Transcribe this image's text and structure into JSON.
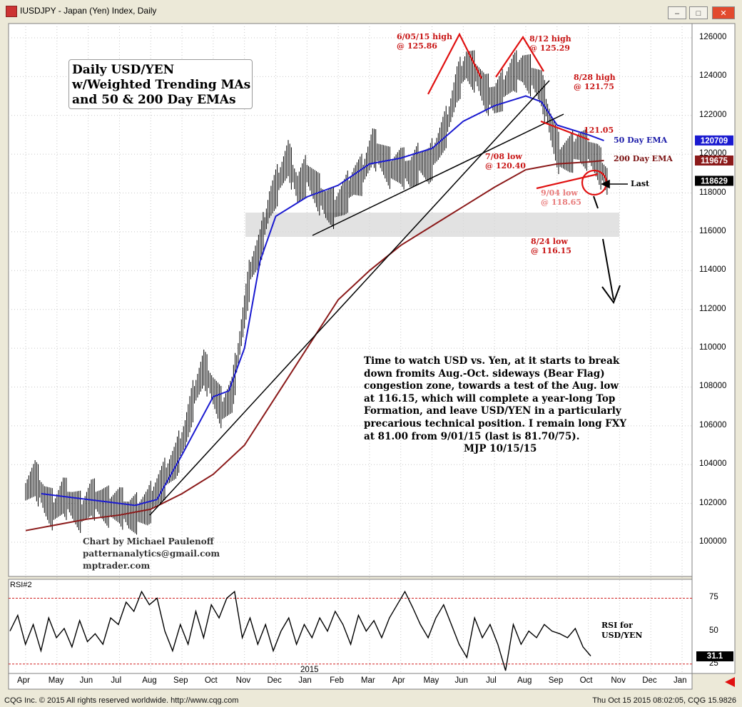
{
  "window": {
    "title": "IUSDJPY - Japan (Yen) Index, Daily",
    "buttons": [
      "minimize",
      "maximize",
      "close"
    ]
  },
  "chart_data": [
    {
      "type": "line",
      "panel": "price",
      "title": "Daily USD/YEN\nw/Weighted Trending MAs\nand 50 & 200 Day EMAs",
      "x_axis_months": [
        "Apr",
        "May",
        "Jun",
        "Jul",
        "Aug",
        "Sep",
        "Oct",
        "Nov",
        "Dec",
        "Jan",
        "Feb",
        "Mar",
        "Apr",
        "May",
        "Jun",
        "Jul",
        "Aug",
        "Sep",
        "Oct",
        "Nov",
        "Dec",
        "Jan"
      ],
      "x_axis_year": "2015",
      "ylim": [
        98500,
        127000
      ],
      "y_ticks": [
        "126000",
        "124000",
        "122000",
        "120000",
        "118000",
        "116000",
        "114000",
        "112000",
        "110000",
        "108000",
        "106000",
        "104000",
        "102000",
        "100000"
      ],
      "series": [
        {
          "name": "50 Day EMA",
          "color": "#1a1ad0",
          "points": [
            [
              0.5,
              102500
            ],
            [
              1.5,
              102300
            ],
            [
              2.5,
              102100
            ],
            [
              3.5,
              101900
            ],
            [
              4.2,
              102200
            ],
            [
              5,
              104500
            ],
            [
              6,
              107500
            ],
            [
              6.5,
              107800
            ],
            [
              7,
              110000
            ],
            [
              7.5,
              114500
            ],
            [
              8,
              116800
            ],
            [
              9,
              117800
            ],
            [
              10,
              118400
            ],
            [
              11,
              119500
            ],
            [
              12,
              119800
            ],
            [
              13,
              120300
            ],
            [
              14,
              121700
            ],
            [
              15,
              122500
            ],
            [
              16,
              123000
            ],
            [
              16.5,
              122700
            ],
            [
              17,
              121500
            ],
            [
              18,
              121000
            ],
            [
              18.5,
              120700
            ]
          ]
        },
        {
          "name": "200 Day EMA",
          "color": "#8b1a1a",
          "points": [
            [
              0,
              100600
            ],
            [
              1,
              100900
            ],
            [
              2,
              101200
            ],
            [
              3,
              101400
            ],
            [
              4,
              101700
            ],
            [
              5,
              102500
            ],
            [
              6,
              103500
            ],
            [
              7,
              105000
            ],
            [
              8,
              107500
            ],
            [
              9,
              110000
            ],
            [
              10,
              112500
            ],
            [
              11,
              114000
            ],
            [
              12,
              115300
            ],
            [
              13,
              116300
            ],
            [
              14,
              117300
            ],
            [
              15,
              118300
            ],
            [
              16,
              119200
            ],
            [
              17,
              119500
            ],
            [
              18,
              119600
            ],
            [
              18.5,
              119675
            ]
          ]
        }
      ],
      "price_range_points": [
        [
          0.0,
          102.6
        ],
        [
          0.3,
          103.3
        ],
        [
          0.6,
          102.2
        ],
        [
          0.9,
          101.6
        ],
        [
          1.2,
          102.4
        ],
        [
          1.5,
          101.9
        ],
        [
          1.8,
          101.5
        ],
        [
          2.1,
          102.3
        ],
        [
          2.4,
          102.0
        ],
        [
          2.7,
          101.8
        ],
        [
          3.0,
          101.9
        ],
        [
          3.3,
          101.4
        ],
        [
          3.6,
          101.5
        ],
        [
          3.9,
          101.8
        ],
        [
          4.2,
          102.6
        ],
        [
          4.5,
          103.4
        ],
        [
          4.8,
          104.2
        ],
        [
          5.1,
          105.6
        ],
        [
          5.4,
          107.6
        ],
        [
          5.7,
          109.0
        ],
        [
          6.0,
          107.8
        ],
        [
          6.3,
          106.8
        ],
        [
          6.6,
          107.6
        ],
        [
          6.9,
          110.8
        ],
        [
          7.2,
          114.0
        ],
        [
          7.5,
          115.2
        ],
        [
          7.8,
          117.4
        ],
        [
          8.1,
          118.6
        ],
        [
          8.4,
          119.8
        ],
        [
          8.7,
          118.2
        ],
        [
          9.0,
          119.0
        ],
        [
          9.3,
          118.2
        ],
        [
          9.6,
          117.4
        ],
        [
          9.9,
          117.2
        ],
        [
          10.2,
          117.8
        ],
        [
          10.5,
          118.6
        ],
        [
          10.8,
          119.0
        ],
        [
          11.1,
          120.4
        ],
        [
          11.4,
          119.8
        ],
        [
          11.7,
          119.2
        ],
        [
          12.0,
          119.4
        ],
        [
          12.3,
          119.0
        ],
        [
          12.6,
          119.6
        ],
        [
          12.9,
          119.4
        ],
        [
          13.2,
          120.4
        ],
        [
          13.5,
          121.6
        ],
        [
          13.8,
          123.6
        ],
        [
          14.1,
          124.6
        ],
        [
          14.4,
          124.2
        ],
        [
          14.7,
          123.2
        ],
        [
          15.0,
          122.8
        ],
        [
          15.3,
          123.4
        ],
        [
          15.6,
          124.2
        ],
        [
          15.9,
          124.4
        ],
        [
          16.2,
          124.0
        ],
        [
          16.5,
          123.4
        ],
        [
          16.8,
          121.4
        ],
        [
          17.1,
          119.8
        ],
        [
          17.4,
          120.0
        ],
        [
          17.7,
          120.4
        ],
        [
          18.0,
          120.2
        ],
        [
          18.3,
          119.6
        ],
        [
          18.6,
          118.6
        ]
      ],
      "price_range_units": "thousands",
      "annotations": [
        {
          "text": "6/05/15 high\n@ 125.86"
        },
        {
          "text": "8/12 high\n@ 125.29"
        },
        {
          "text": "8/28 high\n@ 121.75"
        },
        {
          "text": "121.05"
        },
        {
          "text": "7/08 low\n@ 120.40"
        },
        {
          "text": "9/04 low\n@ 118.65"
        },
        {
          "text": "8/24 low\n@ 116.15"
        },
        {
          "text": "50 Day EMA"
        },
        {
          "text": "200 Day EMA"
        },
        {
          "text": "Last"
        }
      ],
      "price_labels": [
        {
          "value": "120709",
          "color": "#1a1ad0"
        },
        {
          "value": "119675",
          "color": "#8b1a1a"
        },
        {
          "value": "118629",
          "color": "#000000"
        }
      ]
    },
    {
      "type": "line",
      "panel": "rsi",
      "title": "RSI#2",
      "series": [
        {
          "name": "RSI for USD/YEN",
          "values": [
            50,
            62,
            40,
            55,
            35,
            60,
            45,
            52,
            38,
            58,
            42,
            48,
            40,
            60,
            55,
            72,
            65,
            80,
            70,
            75,
            50,
            35,
            55,
            40,
            65,
            45,
            70,
            60,
            75,
            80,
            45,
            60,
            40,
            55,
            35,
            50,
            60,
            40,
            55,
            45,
            60,
            50,
            65,
            55,
            40,
            62,
            50,
            58,
            45,
            60,
            70,
            80,
            68,
            55,
            45,
            60,
            70,
            55,
            40,
            30,
            60,
            45,
            55,
            40,
            20,
            55,
            40,
            50,
            45,
            55,
            50,
            48,
            45,
            52,
            38,
            31.1
          ]
        }
      ],
      "ylim": [
        20,
        85
      ],
      "y_ticks": [
        "75",
        "50",
        "25"
      ],
      "last_value": "31.1",
      "overbought": 75,
      "oversold": 25
    }
  ],
  "subtitle": "Daily USD/YEN\nw/Weighted Trending MAs\nand 50 & 200 Day EMAs",
  "commentary": [
    "Time to watch USD vs. Yen, at it starts to break",
    "down fromits Aug.-Oct. sideways (Bear Flag)",
    "congestion zone, towards a test of the Aug. low",
    "at 116.15, which will complete a year-long Top",
    "Formation, and leave USD/YEN in a particularly",
    "precarious technical position. I remain long FXY",
    "at 81.00 from 9/01/15 (last is 81.70/75)."
  ],
  "signature": "MJP 10/15/15",
  "credit": [
    "Chart by Michael Paulenoff",
    "patternanalytics@gmail.com",
    "mptrader.com"
  ],
  "rsi_side_label": "RSI for\nUSD/YEN",
  "status": {
    "left": "CQG Inc. © 2015 All rights reserved worldwide.  http://www.cqg.com",
    "right": "Thu Oct 15 2015 08:02:05, CQG 15.9826"
  }
}
